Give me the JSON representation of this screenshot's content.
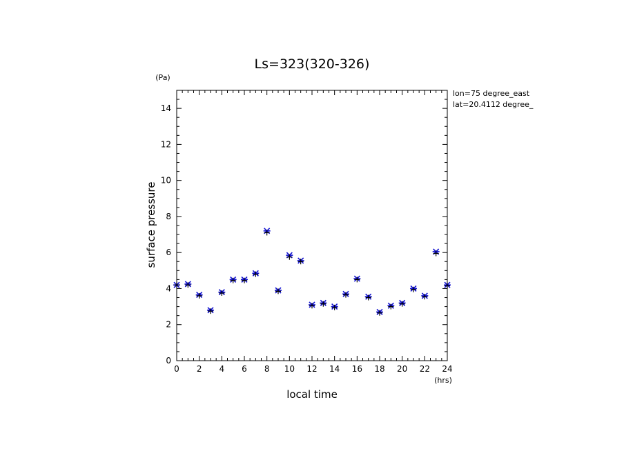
{
  "chart_data": {
    "type": "scatter",
    "title": "Ls=323(320-326)",
    "xlabel": "local time",
    "ylabel": "surface pressure",
    "x_unit": "(hrs)",
    "y_unit": "(Pa)",
    "xlim": [
      0,
      24
    ],
    "ylim": [
      0,
      15
    ],
    "x_ticks": [
      0,
      2,
      4,
      6,
      8,
      10,
      12,
      14,
      16,
      18,
      20,
      22,
      24
    ],
    "y_ticks": [
      0,
      2,
      4,
      6,
      8,
      10,
      12,
      14
    ],
    "grid": false,
    "annotations": [
      "lon=75 degree_east",
      "lat=20.4112 degree_"
    ],
    "series": [
      {
        "marker": "star",
        "color": "#1010d0",
        "x": [
          0,
          1,
          2,
          3,
          4,
          5,
          6,
          7,
          8,
          9,
          10,
          11,
          12,
          13,
          14,
          15,
          16,
          17,
          18,
          19,
          20,
          21,
          22,
          23,
          24
        ],
        "y": [
          4.2,
          4.25,
          3.65,
          2.8,
          3.8,
          4.5,
          4.5,
          4.85,
          7.2,
          3.9,
          5.85,
          5.55,
          3.1,
          3.2,
          3.0,
          3.7,
          4.55,
          3.55,
          2.7,
          3.05,
          3.2,
          4.0,
          3.6,
          6.05,
          4.2
        ]
      },
      {
        "marker": "plus",
        "color": "#000000",
        "x": [
          0,
          1,
          2,
          3,
          4,
          5,
          6,
          7,
          8,
          9,
          10,
          11,
          12,
          13,
          14,
          15,
          16,
          17,
          18,
          19,
          20,
          21,
          22,
          23,
          24
        ],
        "y": [
          4.2,
          4.2,
          3.6,
          2.75,
          3.75,
          4.45,
          4.45,
          4.8,
          7.1,
          3.85,
          5.75,
          5.5,
          3.05,
          3.15,
          2.95,
          3.65,
          4.5,
          3.5,
          2.65,
          3.0,
          3.15,
          3.95,
          3.55,
          5.95,
          4.15
        ]
      }
    ]
  }
}
